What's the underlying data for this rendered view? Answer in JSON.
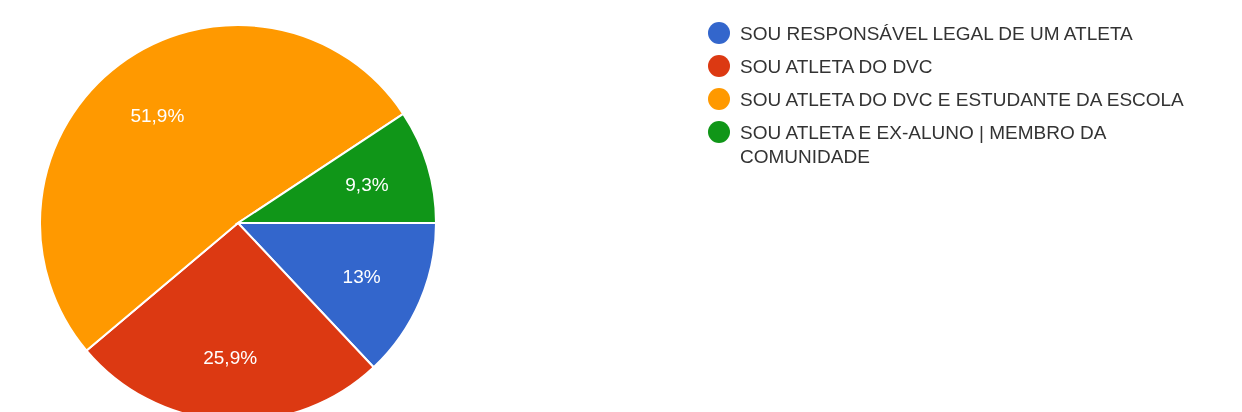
{
  "chart_data": {
    "type": "pie",
    "categories": [
      "SOU RESPONSÁVEL LEGAL DE UM ATLETA",
      "SOU ATLETA DO DVC",
      "SOU ATLETA DO DVC E ESTUDANTE DA ESCOLA",
      "SOU ATLETA E EX-ALUNO | MEMBRO DA COMUNIDADE"
    ],
    "values": [
      13,
      25.9,
      51.9,
      9.3
    ],
    "value_labels": [
      "13%",
      "25,9%",
      "51,9%",
      "9,3%"
    ],
    "colors": [
      "#3366cc",
      "#dc3912",
      "#ff9900",
      "#109618"
    ],
    "legend": "right"
  }
}
